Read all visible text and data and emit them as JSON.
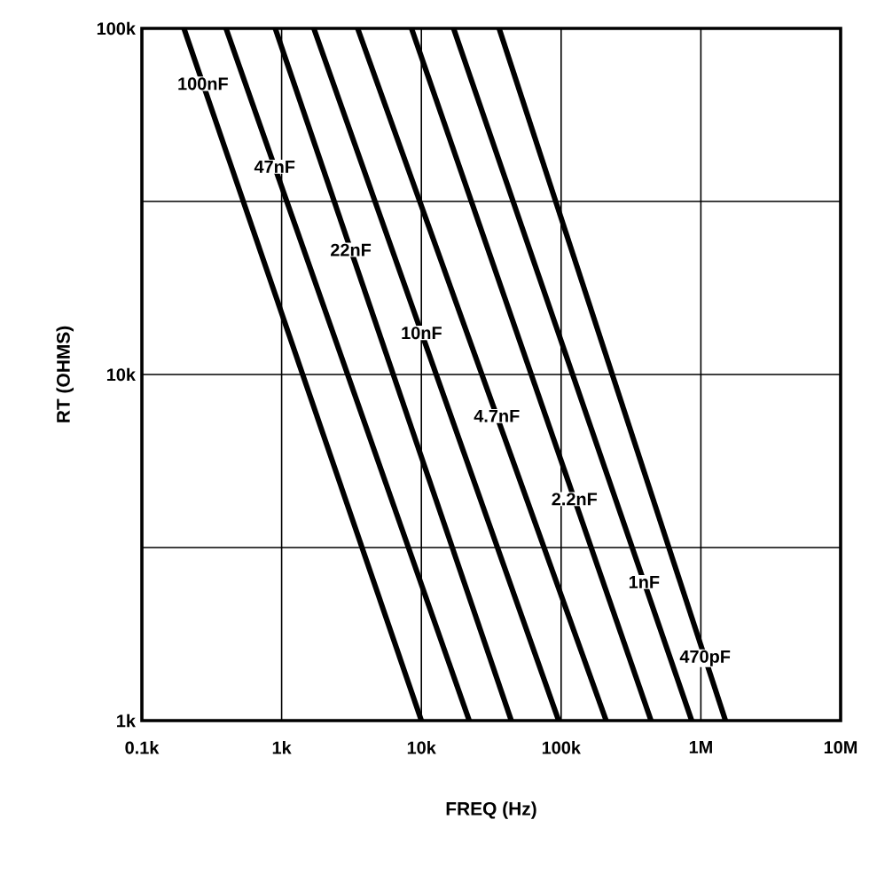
{
  "chart_data": {
    "type": "line",
    "xlabel": "FREQ (Hz)",
    "ylabel": "RT (OHMS)",
    "log": "xy",
    "grid": true,
    "xlim": [
      100,
      10000000
    ],
    "ylim": [
      1000,
      100000
    ],
    "xticks": [
      {
        "value": 100,
        "label": "0.1k"
      },
      {
        "value": 1000,
        "label": "1k"
      },
      {
        "value": 10000,
        "label": "10k"
      },
      {
        "value": 100000,
        "label": "100k"
      },
      {
        "value": 1000000,
        "label": "1M"
      },
      {
        "value": 10000000,
        "label": "10M"
      }
    ],
    "yticks": [
      {
        "value": 1000,
        "label": "1k"
      },
      {
        "value": 3162,
        "label": null
      },
      {
        "value": 10000,
        "label": "10k"
      },
      {
        "value": 31623,
        "label": null
      },
      {
        "value": 100000,
        "label": "100k"
      }
    ],
    "series": [
      {
        "name": "100nF",
        "color": "#000000",
        "x": [
          200,
          10000
        ],
        "values": [
          100000,
          1000
        ]
      },
      {
        "name": "47nF",
        "color": "#000000",
        "x": [
          400,
          22000
        ],
        "values": [
          100000,
          1000
        ]
      },
      {
        "name": "22nF",
        "color": "#000000",
        "x": [
          900,
          44000
        ],
        "values": [
          100000,
          1000
        ]
      },
      {
        "name": "10nF",
        "color": "#000000",
        "x": [
          1700,
          96000
        ],
        "values": [
          100000,
          1000
        ]
      },
      {
        "name": "4.7nF",
        "color": "#000000",
        "x": [
          3500,
          210000
        ],
        "values": [
          100000,
          1000
        ]
      },
      {
        "name": "2.2nF",
        "color": "#000000",
        "x": [
          8500,
          440000
        ],
        "values": [
          100000,
          1000
        ]
      },
      {
        "name": "1nF",
        "color": "#000000",
        "x": [
          17000,
          860000
        ],
        "values": [
          100000,
          1000
        ]
      },
      {
        "name": "470pF",
        "color": "#000000",
        "x": [
          36000,
          1500000
        ],
        "values": [
          100000,
          1000
        ]
      }
    ]
  }
}
